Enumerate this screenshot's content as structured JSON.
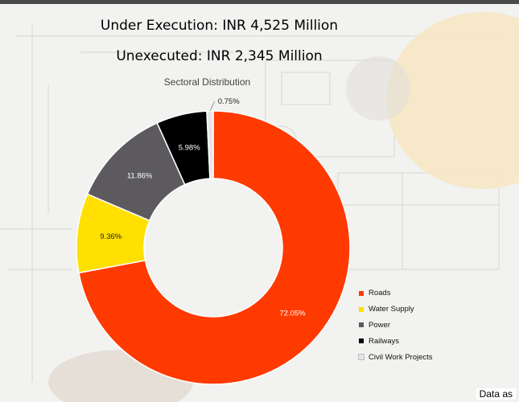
{
  "slide": {
    "headline_1": "Under Execution: INR 4,525 Million",
    "headline_2": "Unexecuted: INR 2,345 Million",
    "footnote": "Data as"
  },
  "chart_data": {
    "type": "pie",
    "donut": true,
    "title": "Sectoral Distribution",
    "legend_position": "bottom-right",
    "slices": [
      {
        "label": "Roads",
        "value": 72.05,
        "display": "72.05%",
        "color": "#ff3a00"
      },
      {
        "label": "Water Supply",
        "value": 9.36,
        "display": "9.36%",
        "color": "#ffe000"
      },
      {
        "label": "Power",
        "value": 11.86,
        "display": "11.86%",
        "color": "#5c5a5e"
      },
      {
        "label": "Railways",
        "value": 5.98,
        "display": "5.98%",
        "color": "#000000"
      },
      {
        "label": "Civil Work Projects",
        "value": 0.75,
        "display": "0.75%",
        "color": "#e6e6e6"
      }
    ]
  }
}
